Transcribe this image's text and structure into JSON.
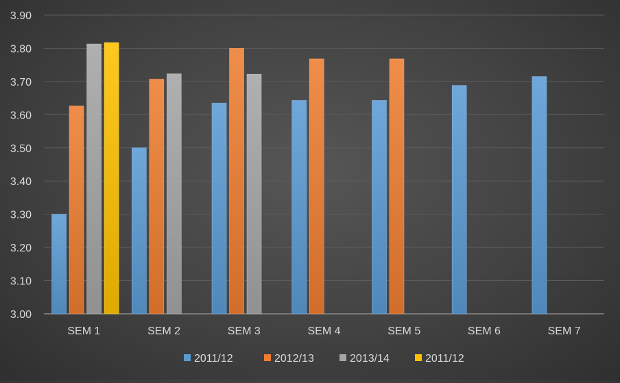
{
  "chart_data": {
    "type": "bar",
    "title": "",
    "xlabel": "",
    "ylabel": "",
    "categories": [
      "SEM 1",
      "SEM 2",
      "SEM 3",
      "SEM 4",
      "SEM 5",
      "SEM 6",
      "SEM 7"
    ],
    "ylim": [
      3.0,
      3.9
    ],
    "yticks": [
      "3.00",
      "3.10",
      "3.20",
      "3.30",
      "3.40",
      "3.50",
      "3.60",
      "3.70",
      "3.80",
      "3.90"
    ],
    "grid": true,
    "legend_position": "bottom",
    "series": [
      {
        "name": "2011/12",
        "color": "#5b9bd5",
        "values": [
          3.3,
          3.5,
          3.635,
          3.643,
          3.643,
          3.688,
          3.715
        ]
      },
      {
        "name": "2012/13",
        "color": "#ed7d31",
        "values": [
          3.626,
          3.707,
          3.8,
          3.768,
          3.768,
          null,
          null
        ]
      },
      {
        "name": "2013/14",
        "color": "#a5a5a5",
        "values": [
          3.813,
          3.723,
          3.722,
          null,
          null,
          null,
          null
        ]
      },
      {
        "name": "2011/12",
        "color": "#ffc000",
        "values": [
          3.817,
          null,
          null,
          null,
          null,
          null,
          null
        ]
      }
    ]
  }
}
